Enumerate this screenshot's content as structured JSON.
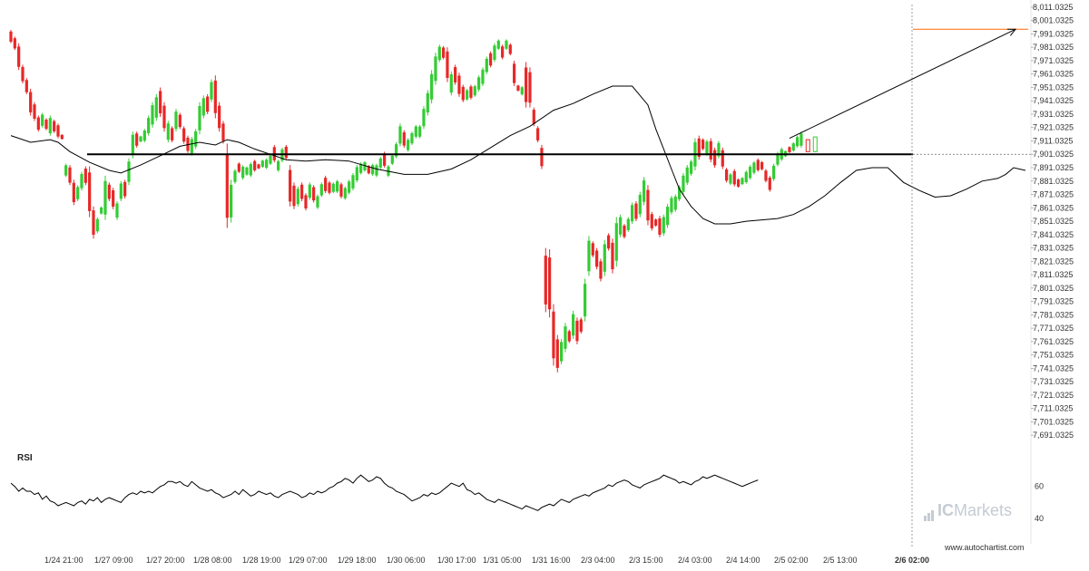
{
  "chart_data": {
    "type": "candlestick",
    "price_axis": {
      "ylim": [
        7683,
        8013
      ],
      "ticks": [
        "8,011.0325",
        "8,001.0325",
        "7,991.0325",
        "7,981.0325",
        "7,971.0325",
        "7,961.0325",
        "7,951.0325",
        "7,941.0325",
        "7,931.0325",
        "7,921.0325",
        "7,911.0325",
        "7,901.0325",
        "7,891.0325",
        "7,881.0325",
        "7,871.0325",
        "7,861.0325",
        "7,851.0325",
        "7,841.0325",
        "7,831.0325",
        "7,821.0325",
        "7,811.0325",
        "7,801.0325",
        "7,791.0325",
        "7,781.0325",
        "7,771.0325",
        "7,761.0325",
        "7,751.0325",
        "7,741.0325",
        "7,731.0325",
        "7,721.0325",
        "7,711.0325",
        "7,701.0325",
        "7,691.0325"
      ]
    },
    "x_axis": {
      "labels": [
        "1/24 21:00",
        "1/27 09:00",
        "1/27 20:00",
        "1/28 08:00",
        "1/28 19:00",
        "1/29 07:00",
        "1/29 18:00",
        "1/30 06:00",
        "1/30 17:00",
        "1/31 05:00",
        "1/31 16:00",
        "2/3 04:00",
        "2/3 15:00",
        "2/4 03:00",
        "2/4 14:00",
        "2/5 02:00",
        "2/5 13:00",
        "2/6 02:00"
      ],
      "highlighted_label": "2/6 02:00"
    },
    "support_level": 7901.0,
    "target_level": 7994.5,
    "current_level": 7901.0325,
    "projection": {
      "from_bar": 198,
      "from_price": 7913,
      "to_bar": 221,
      "to_price": 7994.5
    },
    "moving_average": [
      [
        0,
        7915
      ],
      [
        5,
        7910
      ],
      [
        10,
        7912
      ],
      [
        12,
        7910
      ],
      [
        15,
        7903
      ],
      [
        20,
        7895
      ],
      [
        25,
        7889
      ],
      [
        28,
        7887
      ],
      [
        33,
        7893
      ],
      [
        38,
        7900
      ],
      [
        43,
        7907
      ],
      [
        48,
        7910
      ],
      [
        52,
        7908
      ],
      [
        55,
        7912
      ],
      [
        58,
        7910
      ],
      [
        62,
        7905
      ],
      [
        66,
        7901
      ],
      [
        70,
        7897
      ],
      [
        75,
        7896
      ],
      [
        80,
        7897
      ],
      [
        86,
        7896
      ],
      [
        93,
        7890
      ],
      [
        100,
        7886
      ],
      [
        106,
        7886
      ],
      [
        112,
        7890
      ],
      [
        117,
        7897
      ],
      [
        122,
        7906
      ],
      [
        127,
        7915
      ],
      [
        132,
        7922
      ],
      [
        138,
        7934
      ],
      [
        143,
        7939
      ],
      [
        148,
        7946
      ],
      [
        153,
        7952
      ],
      [
        158,
        7952
      ],
      [
        162,
        7938
      ],
      [
        164,
        7920
      ],
      [
        166,
        7905
      ],
      [
        168,
        7890
      ],
      [
        170,
        7875
      ],
      [
        173,
        7862
      ],
      [
        176,
        7853
      ],
      [
        179,
        7849
      ],
      [
        183,
        7849
      ],
      [
        187,
        7851
      ],
      [
        191,
        7852
      ],
      [
        195,
        7853
      ],
      [
        199,
        7856
      ],
      [
        203,
        7862
      ],
      [
        207,
        7870
      ],
      [
        211,
        7880
      ],
      [
        215,
        7889
      ],
      [
        219,
        7891
      ],
      [
        223,
        7891
      ],
      [
        227,
        7880
      ],
      [
        231,
        7874
      ],
      [
        235,
        7869
      ],
      [
        239,
        7870
      ],
      [
        243,
        7875
      ],
      [
        247,
        7881
      ],
      [
        251,
        7883
      ],
      [
        253,
        7886
      ],
      [
        255,
        7891
      ],
      [
        258,
        7889
      ]
    ],
    "candles": [
      [
        7994,
        7984,
        "down"
      ],
      [
        7989,
        7979,
        "down"
      ],
      [
        7984,
        7964,
        "down"
      ],
      [
        7968,
        7954,
        "down"
      ],
      [
        7958,
        7946,
        "down"
      ],
      [
        7950,
        7930,
        "down"
      ],
      [
        7940,
        7926,
        "down"
      ],
      [
        7930,
        7918,
        "down"
      ],
      [
        7932,
        7921,
        "up"
      ],
      [
        7928,
        7919,
        "down"
      ],
      [
        7930,
        7915,
        "up"
      ],
      [
        7927,
        7917,
        "down"
      ],
      [
        7924,
        7913,
        "down"
      ],
      [
        7916,
        7912,
        "down"
      ],
      [
        7894,
        7884,
        "up"
      ],
      [
        7893,
        7878,
        "down"
      ],
      [
        7882,
        7863,
        "down"
      ],
      [
        7878,
        7866,
        "up"
      ],
      [
        7888,
        7874,
        "up"
      ],
      [
        7892,
        7878,
        "down"
      ],
      [
        7892,
        7854,
        "down"
      ],
      [
        7862,
        7838,
        "down"
      ],
      [
        7854,
        7842,
        "up"
      ],
      [
        7862,
        7856,
        "up"
      ],
      [
        7885,
        7852,
        "up"
      ],
      [
        7880,
        7866,
        "down"
      ],
      [
        7876,
        7860,
        "down"
      ],
      [
        7866,
        7852,
        "up"
      ],
      [
        7881,
        7866,
        "up"
      ],
      [
        7882,
        7868,
        "down"
      ],
      [
        7898,
        7878,
        "up"
      ],
      [
        7918,
        7898,
        "up"
      ],
      [
        7918,
        7906,
        "down"
      ],
      [
        7915,
        7910,
        "up"
      ],
      [
        7920,
        7910,
        "up"
      ],
      [
        7930,
        7915,
        "up"
      ],
      [
        7940,
        7921,
        "up"
      ],
      [
        7946,
        7926,
        "up"
      ],
      [
        7951,
        7929,
        "down"
      ],
      [
        7940,
        7918,
        "down"
      ],
      [
        7926,
        7910,
        "up"
      ],
      [
        7922,
        7910,
        "down"
      ],
      [
        7935,
        7918,
        "up"
      ],
      [
        7932,
        7920,
        "down"
      ],
      [
        7922,
        7909,
        "down"
      ],
      [
        7915,
        7902,
        "down"
      ],
      [
        7914,
        7900,
        "up"
      ],
      [
        7920,
        7905,
        "up"
      ],
      [
        7940,
        7916,
        "up"
      ],
      [
        7945,
        7928,
        "up"
      ],
      [
        7946,
        7931,
        "down"
      ],
      [
        7957,
        7940,
        "up"
      ],
      [
        7960,
        7928,
        "down"
      ],
      [
        7940,
        7918,
        "down"
      ],
      [
        7926,
        7909,
        "down"
      ],
      [
        7909,
        7846,
        "down"
      ],
      [
        7882,
        7850,
        "up"
      ],
      [
        7890,
        7879,
        "up"
      ],
      [
        7895,
        7887,
        "down"
      ],
      [
        7893,
        7882,
        "up"
      ],
      [
        7892,
        7885,
        "up"
      ],
      [
        7895,
        7884,
        "up"
      ],
      [
        7897,
        7888,
        "down"
      ],
      [
        7894,
        7890,
        "down"
      ],
      [
        7897,
        7891,
        "up"
      ],
      [
        7898,
        7890,
        "up"
      ],
      [
        7901,
        7893,
        "up"
      ],
      [
        7908,
        7895,
        "down"
      ],
      [
        7897,
        7888,
        "up"
      ],
      [
        7906,
        7895,
        "up"
      ],
      [
        7908,
        7897,
        "down"
      ],
      [
        7893,
        7862,
        "down"
      ],
      [
        7880,
        7860,
        "down"
      ],
      [
        7877,
        7862,
        "up"
      ],
      [
        7880,
        7866,
        "down"
      ],
      [
        7872,
        7859,
        "down"
      ],
      [
        7880,
        7867,
        "up"
      ],
      [
        7878,
        7865,
        "down"
      ],
      [
        7871,
        7860,
        "up"
      ],
      [
        7880,
        7869,
        "up"
      ],
      [
        7885,
        7872,
        "down"
      ],
      [
        7881,
        7871,
        "down"
      ],
      [
        7880,
        7872,
        "up"
      ],
      [
        7882,
        7872,
        "up"
      ],
      [
        7880,
        7868,
        "down"
      ],
      [
        7877,
        7867,
        "up"
      ],
      [
        7882,
        7871,
        "up"
      ],
      [
        7887,
        7874,
        "up"
      ],
      [
        7893,
        7880,
        "up"
      ],
      [
        7895,
        7886,
        "up"
      ],
      [
        7896,
        7888,
        "up"
      ],
      [
        7893,
        7886,
        "down"
      ],
      [
        7894,
        7885,
        "up"
      ],
      [
        7894,
        7884,
        "up"
      ],
      [
        7899,
        7890,
        "up"
      ],
      [
        7903,
        7891,
        "down"
      ],
      [
        7893,
        7884,
        "up"
      ],
      [
        7901,
        7893,
        "up"
      ],
      [
        7910,
        7898,
        "up"
      ],
      [
        7924,
        7907,
        "up"
      ],
      [
        7919,
        7906,
        "down"
      ],
      [
        7913,
        7903,
        "up"
      ],
      [
        7918,
        7908,
        "up"
      ],
      [
        7923,
        7913,
        "up"
      ],
      [
        7923,
        7913,
        "up"
      ],
      [
        7937,
        7920,
        "up"
      ],
      [
        7949,
        7930,
        "up"
      ],
      [
        7964,
        7939,
        "up"
      ],
      [
        7977,
        7953,
        "up"
      ],
      [
        7983,
        7970,
        "up"
      ],
      [
        7982,
        7972,
        "down"
      ],
      [
        7981,
        7955,
        "down"
      ],
      [
        7963,
        7945,
        "up"
      ],
      [
        7968,
        7953,
        "down"
      ],
      [
        7962,
        7944,
        "down"
      ],
      [
        7953,
        7940,
        "down"
      ],
      [
        7950,
        7941,
        "up"
      ],
      [
        7953,
        7942,
        "down"
      ],
      [
        7953,
        7944,
        "up"
      ],
      [
        7960,
        7948,
        "up"
      ],
      [
        7966,
        7952,
        "up"
      ],
      [
        7974,
        7961,
        "up"
      ],
      [
        7978,
        7966,
        "down"
      ],
      [
        7984,
        7970,
        "up"
      ],
      [
        7987,
        7979,
        "up"
      ],
      [
        7983,
        7972,
        "down"
      ],
      [
        7987,
        7979,
        "up"
      ],
      [
        7984,
        7975,
        "down"
      ],
      [
        7971,
        7952,
        "down"
      ],
      [
        7953,
        7948,
        "down"
      ],
      [
        7952,
        7945,
        "up"
      ],
      [
        7970,
        7936,
        "down"
      ],
      [
        7966,
        7936,
        "down"
      ],
      [
        7936,
        7922,
        "down"
      ],
      [
        7922,
        7910,
        "down"
      ],
      [
        7908,
        7890,
        "down"
      ],
      [
        7831,
        7783,
        "down"
      ],
      [
        7830,
        7779,
        "down"
      ],
      [
        7789,
        7743,
        "down"
      ],
      [
        7766,
        7738,
        "down"
      ],
      [
        7763,
        7744,
        "up"
      ],
      [
        7775,
        7753,
        "up"
      ],
      [
        7770,
        7760,
        "down"
      ],
      [
        7784,
        7763,
        "up"
      ],
      [
        7779,
        7759,
        "down"
      ],
      [
        7779,
        7767,
        "down"
      ],
      [
        7808,
        7776,
        "up"
      ],
      [
        7840,
        7810,
        "up"
      ],
      [
        7836,
        7824,
        "down"
      ],
      [
        7831,
        7815,
        "down"
      ],
      [
        7823,
        7806,
        "down"
      ],
      [
        7837,
        7810,
        "up"
      ],
      [
        7842,
        7829,
        "down"
      ],
      [
        7838,
        7812,
        "down"
      ],
      [
        7854,
        7817,
        "up"
      ],
      [
        7856,
        7839,
        "up"
      ],
      [
        7849,
        7838,
        "down"
      ],
      [
        7854,
        7843,
        "up"
      ],
      [
        7865,
        7849,
        "up"
      ],
      [
        7866,
        7851,
        "down"
      ],
      [
        7873,
        7854,
        "up"
      ],
      [
        7884,
        7863,
        "up"
      ],
      [
        7878,
        7848,
        "down"
      ],
      [
        7858,
        7844,
        "down"
      ],
      [
        7853,
        7847,
        "down"
      ],
      [
        7855,
        7839,
        "down"
      ],
      [
        7856,
        7840,
        "up"
      ],
      [
        7864,
        7846,
        "up"
      ],
      [
        7870,
        7856,
        "up"
      ],
      [
        7871,
        7858,
        "up"
      ],
      [
        7878,
        7866,
        "up"
      ],
      [
        7887,
        7871,
        "up"
      ],
      [
        7893,
        7878,
        "up"
      ],
      [
        7897,
        7885,
        "up"
      ],
      [
        7913,
        7889,
        "up"
      ],
      [
        7915,
        7897,
        "down"
      ],
      [
        7913,
        7904,
        "down"
      ],
      [
        7912,
        7900,
        "up"
      ],
      [
        7913,
        7895,
        "down"
      ],
      [
        7906,
        7891,
        "down"
      ],
      [
        7911,
        7898,
        "up"
      ],
      [
        7906,
        7890,
        "down"
      ],
      [
        7891,
        7880,
        "down"
      ],
      [
        7887,
        7878,
        "up"
      ],
      [
        7890,
        7877,
        "down"
      ],
      [
        7883,
        7876,
        "down"
      ],
      [
        7884,
        7878,
        "up"
      ],
      [
        7889,
        7879,
        "up"
      ],
      [
        7893,
        7882,
        "up"
      ],
      [
        7896,
        7886,
        "up"
      ],
      [
        7898,
        7888,
        "down"
      ],
      [
        7896,
        7889,
        "down"
      ],
      [
        7890,
        7880,
        "down"
      ],
      [
        7885,
        7873,
        "down"
      ],
      [
        7894,
        7881,
        "up"
      ],
      [
        7903,
        7892,
        "up"
      ],
      [
        7906,
        7896,
        "up"
      ],
      [
        7904,
        7899,
        "up"
      ],
      [
        7907,
        7902,
        "down"
      ],
      [
        7910,
        7903,
        "up"
      ],
      [
        7915,
        7906,
        "up"
      ],
      [
        7918,
        7906,
        "up"
      ]
    ],
    "rsi": {
      "label": "RSI",
      "levels": [
        "60",
        "40"
      ],
      "ylim": [
        30,
        75
      ],
      "values": [
        62,
        60,
        57,
        59,
        57,
        57,
        55,
        56,
        52,
        54,
        51,
        50,
        48,
        49,
        50,
        49,
        48,
        50,
        51,
        49,
        52,
        51,
        53,
        50,
        52,
        53,
        52,
        51,
        50,
        53,
        55,
        56,
        55,
        57,
        56,
        57,
        56,
        58,
        60,
        61,
        63,
        63,
        62,
        63,
        61,
        60,
        63,
        61,
        59,
        58,
        57,
        58,
        56,
        55,
        53,
        54,
        55,
        57,
        55,
        58,
        56,
        54,
        55,
        57,
        56,
        55,
        56,
        54,
        53,
        55,
        56,
        57,
        56,
        55,
        53,
        54,
        56,
        55,
        57,
        56,
        57,
        59,
        60,
        62,
        63,
        65,
        64,
        62,
        65,
        67,
        65,
        63,
        64,
        66,
        65,
        62,
        60,
        59,
        57,
        56,
        55,
        53,
        51,
        52,
        53,
        55,
        54,
        56,
        55,
        56,
        58,
        60,
        62,
        61,
        60,
        62,
        58,
        57,
        55,
        56,
        54,
        52,
        51,
        50,
        52,
        51,
        50,
        49,
        48,
        47,
        46,
        48,
        47,
        46,
        45,
        47,
        48,
        49,
        48,
        50,
        52,
        51,
        50,
        52,
        53,
        54,
        55,
        54,
        56,
        57,
        58,
        59,
        61,
        60,
        62,
        63,
        64,
        63,
        61,
        60,
        59,
        61,
        62,
        63,
        64,
        65,
        67,
        66,
        65,
        64,
        62,
        63,
        62,
        61,
        63,
        64,
        66,
        65,
        66,
        67,
        66,
        65,
        64,
        63,
        62,
        61,
        60,
        61,
        62,
        63,
        64
      ]
    }
  },
  "branding": {
    "logo_text_ic": "IC",
    "logo_text_markets": "Markets",
    "website": "www.autochartist.com"
  },
  "colors": {
    "up": "#33cc33",
    "down": "#e82727",
    "target_line": "#ff6600",
    "support_line": "#000000",
    "ma_line": "#000000",
    "grid_axis": "#999999"
  }
}
